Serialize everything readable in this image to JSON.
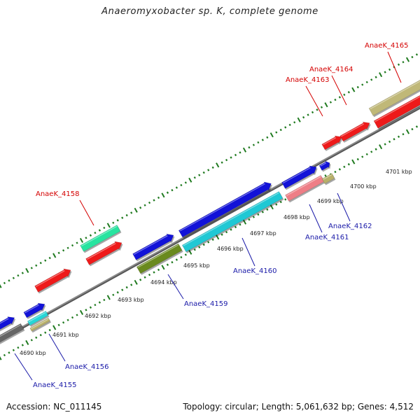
{
  "title": "Anaeromyxobacter sp. K, complete genome",
  "footer": {
    "accession": "Accession: NC_011145",
    "summary": "Topology: circular; Length: 5,061,632 bp; Genes: 4,512"
  },
  "colors": {
    "label_forward": "#d40000",
    "label_reverse": "#1a1aa8",
    "tick": "#1f7a1f",
    "backbone": "#8a8a8a"
  },
  "kbp_labels": [
    "4690 kbp",
    "4691 kbp",
    "4692 kbp",
    "4693 kbp",
    "4694 kbp",
    "4695 kbp",
    "4696 kbp",
    "4697 kbp",
    "4698 kbp",
    "4699 kbp",
    "4700 kbp",
    "4701 kbp"
  ],
  "gene_labels": {
    "forward": [
      "AnaeK_4158",
      "AnaeK_4163",
      "AnaeK_4164",
      "AnaeK_4165"
    ],
    "reverse": [
      "AnaeK_4155",
      "AnaeK_4156",
      "AnaeK_4159",
      "AnaeK_4160",
      "AnaeK_4161",
      "AnaeK_4162"
    ]
  }
}
